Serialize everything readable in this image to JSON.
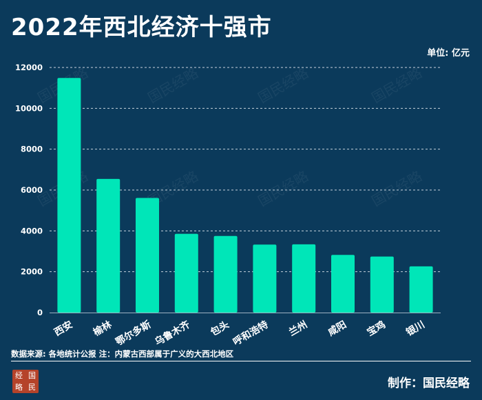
{
  "title": "2022年西北经济十强市",
  "unit_label": "单位: 亿元",
  "source_note": "数据来源: 各地统计公报   注：内蒙古西部属于广义的大西北地区",
  "credit": "制作：国民经略",
  "logo_chars": [
    "经",
    "国",
    "略",
    "民"
  ],
  "watermark_text": "国民经略",
  "colors": {
    "background": "#0b3a5b",
    "bar": "#00e6b8",
    "grid": "#c8d3dc",
    "text": "#ffffff"
  },
  "chart_data": {
    "type": "bar",
    "title": "2022年西北经济十强市",
    "ylabel": "单位: 亿元",
    "xlabel": "",
    "categories": [
      "西安",
      "榆林",
      "鄂尔多斯",
      "乌鲁木齐",
      "包头",
      "呼和浩特",
      "兰州",
      "咸阳",
      "宝鸡",
      "银川"
    ],
    "values": [
      11487,
      6544,
      5614,
      3855,
      3750,
      3329,
      3343,
      2821,
      2744,
      2263
    ],
    "ylim": [
      0,
      12000
    ],
    "yticks": [
      0,
      2000,
      4000,
      6000,
      8000,
      10000,
      12000
    ],
    "grid": true
  }
}
